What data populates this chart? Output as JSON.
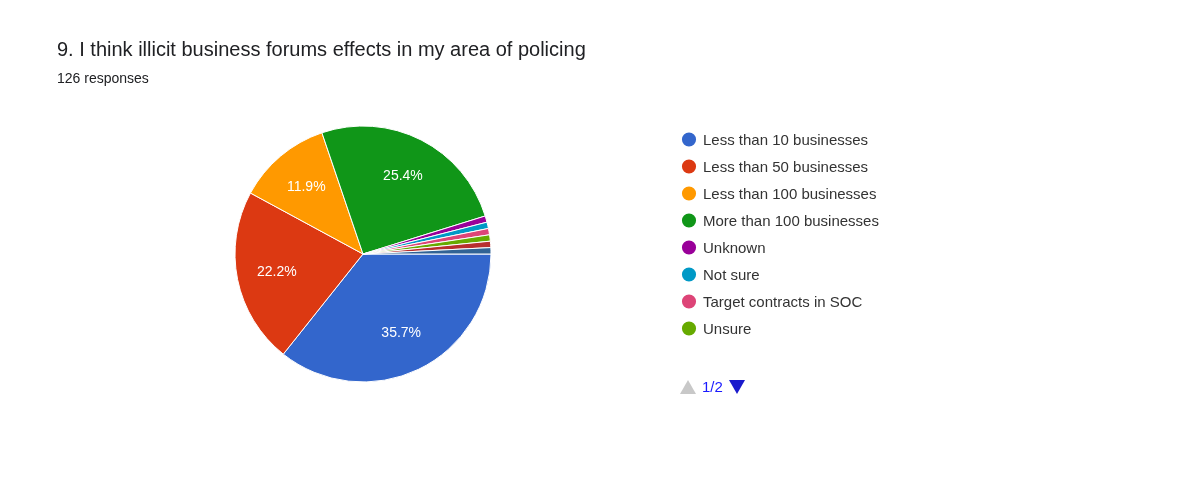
{
  "chart_data": {
    "type": "pie",
    "title": "9.     I think illicit business forums effects in my area of policing",
    "subtitle": "126 responses",
    "categories": [
      "Less than 10 businesses",
      "Less than 50 businesses",
      "Less than 100 businesses",
      "More than 100 businesses",
      "Unknown",
      "Not sure",
      "Target contracts in SOC",
      "Unsure",
      null,
      null
    ],
    "values": [
      35.7,
      22.2,
      11.9,
      25.4,
      0.8,
      0.8,
      0.8,
      0.8,
      0.8,
      0.8
    ],
    "value_labels": [
      "35.7%",
      "22.2%",
      "11.9%",
      "25.4%",
      null,
      null,
      null,
      null,
      null,
      null
    ],
    "colors": [
      "#3366cc",
      "#dc3912",
      "#ff9900",
      "#109618",
      "#990099",
      "#0099c6",
      "#dd4477",
      "#66aa00",
      "#b82e2e",
      "#316395"
    ],
    "legend": "right",
    "annotations": [
      "1/2"
    ]
  }
}
